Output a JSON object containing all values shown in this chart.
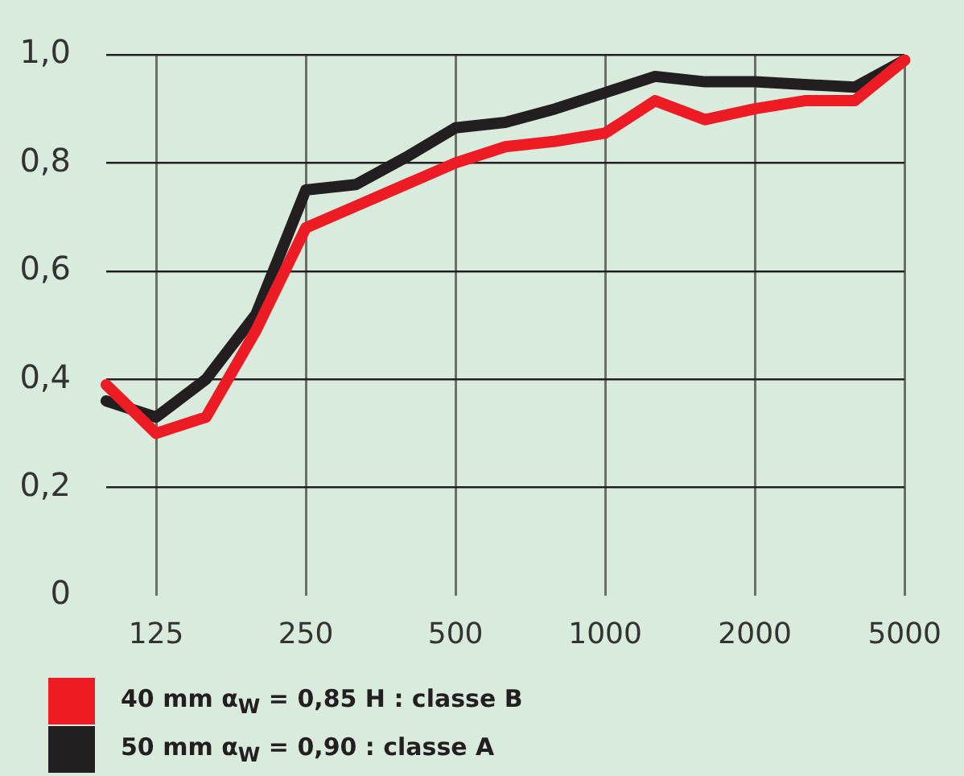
{
  "chart_data": {
    "type": "line",
    "categories": [
      null,
      "125",
      null,
      null,
      "250",
      null,
      null,
      "500",
      null,
      null,
      "1000",
      null,
      null,
      "2000",
      null,
      null,
      "5000"
    ],
    "series": [
      {
        "name": "40 mm α$_{W}$ = 0,85 H : classe B",
        "color": "#ed1c24",
        "values": [
          0.39,
          0.3,
          0.33,
          0.49,
          0.68,
          0.72,
          0.76,
          0.8,
          0.83,
          0.84,
          0.855,
          0.915,
          0.88,
          0.9,
          0.915,
          0.915,
          0.99
        ]
      },
      {
        "name": "50 mm α$_{W}$ = 0,90 : classe A",
        "color": "#231f20",
        "values": [
          0.36,
          0.33,
          0.4,
          0.52,
          0.75,
          0.76,
          0.81,
          0.865,
          0.875,
          0.9,
          0.93,
          0.96,
          0.95,
          0.95,
          0.945,
          0.94,
          0.99
        ]
      }
    ],
    "ylim": [
      0,
      1
    ],
    "yticks": [
      0,
      {
        "value": 0.2,
        "label": "0,2"
      },
      {
        "value": 0.4,
        "label": "0,4"
      },
      {
        "value": 0.6,
        "label": "0,6"
      },
      {
        "value": 0.8,
        "label": "0,8"
      },
      {
        "value": 1,
        "label": "1,0"
      }
    ],
    "grid": true,
    "legend": "bottom",
    "marker": "none",
    "line_style": "solid"
  }
}
